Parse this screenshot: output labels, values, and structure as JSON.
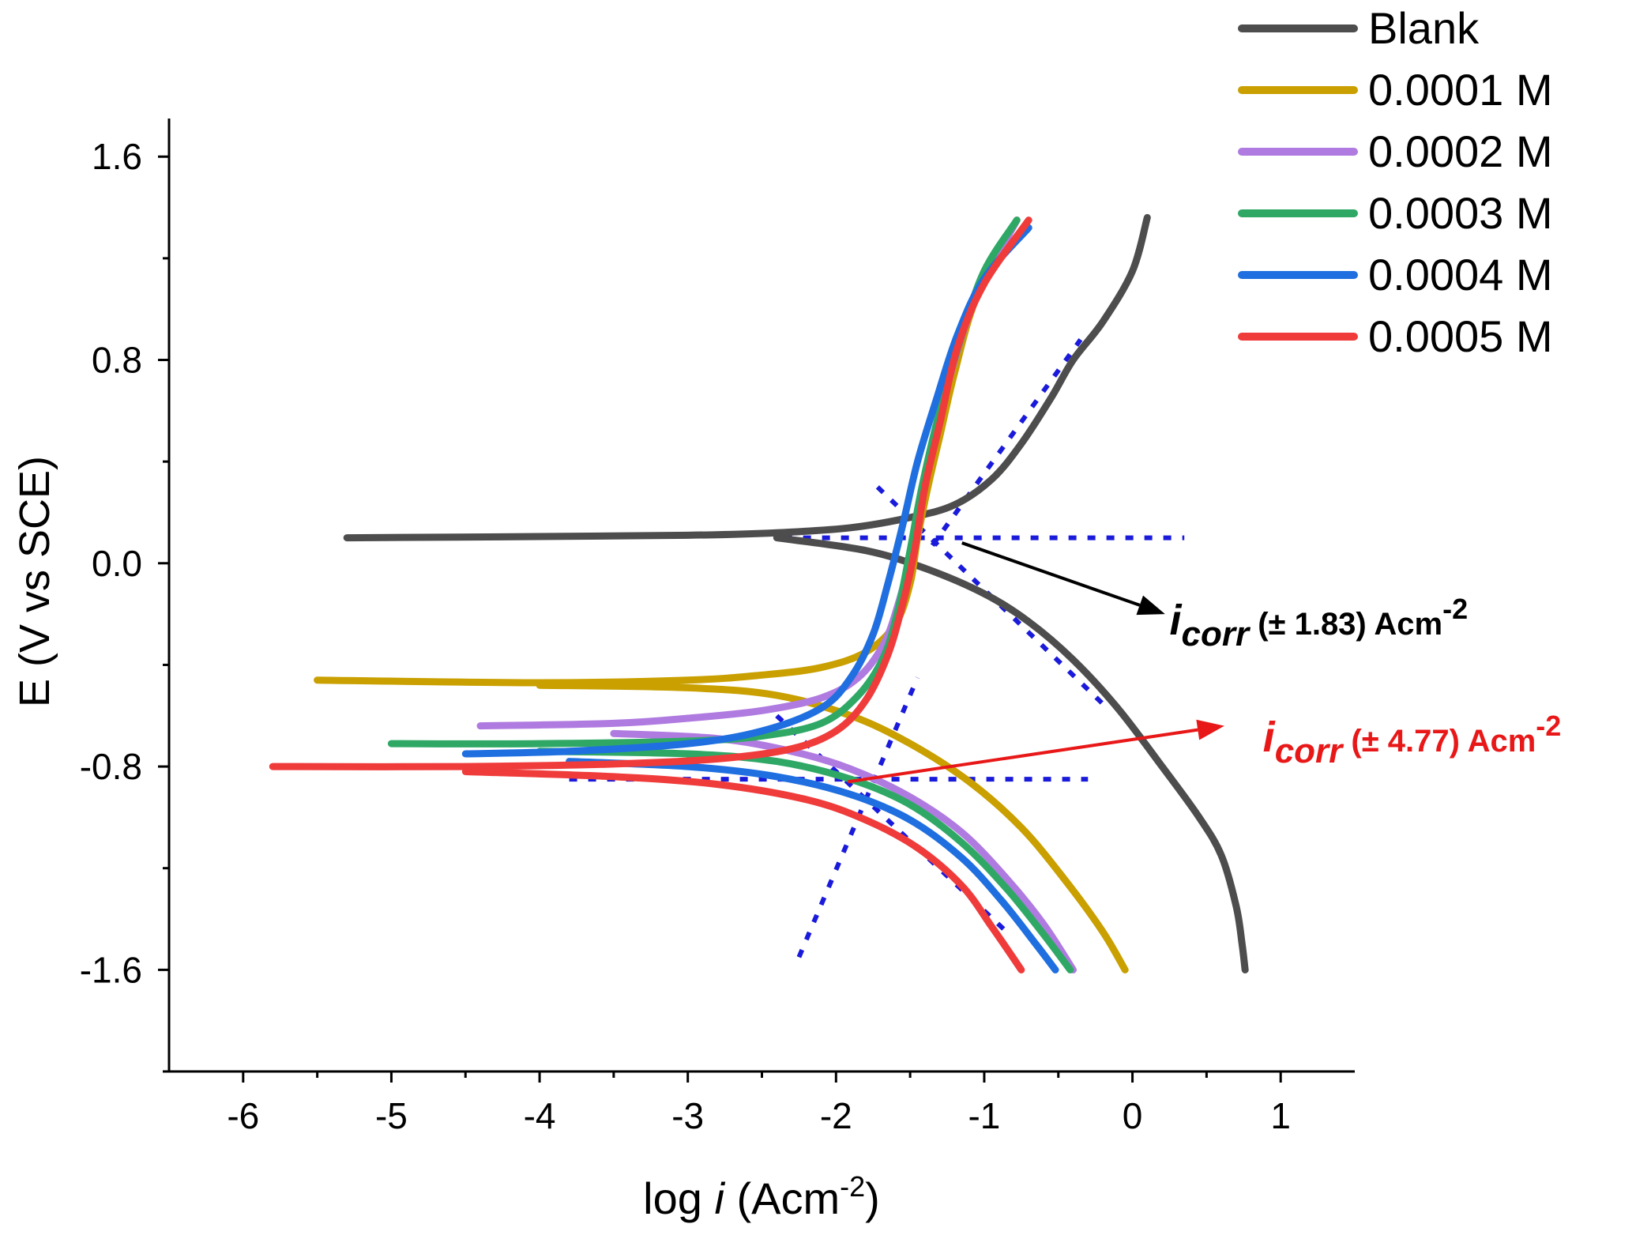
{
  "chart_data": {
    "type": "line",
    "title": "",
    "xlabel": {
      "prefix": "log ",
      "italic": "i",
      "unit": " (Acm",
      "sup": "-2",
      "close": ")"
    },
    "ylabel": "E (V vs SCE)",
    "xlim": [
      -6.5,
      1.5
    ],
    "ylim": [
      -2.0,
      1.75
    ],
    "xticks": [
      -6,
      -5,
      -4,
      -3,
      -2,
      -1,
      0,
      1
    ],
    "xtick_labels": [
      "-6",
      "-5",
      "-4",
      "-3",
      "-2",
      "-1",
      "0",
      "1"
    ],
    "yticks": [
      -1.6,
      -0.8,
      0.0,
      0.8,
      1.6
    ],
    "ytick_labels": [
      "-1.6",
      "-0.8",
      "0.0",
      "0.8",
      "1.6"
    ],
    "legend_position": "top-right",
    "series": [
      {
        "name": "Blank",
        "color": "#4d4d4d",
        "anodic": [
          [
            -5.3,
            0.1
          ],
          [
            -4.0,
            0.105
          ],
          [
            -3.0,
            0.11
          ],
          [
            -2.4,
            0.12
          ],
          [
            -1.9,
            0.14
          ],
          [
            -1.5,
            0.18
          ],
          [
            -1.2,
            0.23
          ],
          [
            -0.95,
            0.33
          ],
          [
            -0.75,
            0.47
          ],
          [
            -0.55,
            0.65
          ],
          [
            -0.4,
            0.8
          ],
          [
            -0.2,
            0.95
          ],
          [
            0.0,
            1.15
          ],
          [
            0.1,
            1.36
          ]
        ],
        "cathodic": [
          [
            -2.4,
            0.1
          ],
          [
            -1.8,
            0.05
          ],
          [
            -1.4,
            -0.02
          ],
          [
            -1.0,
            -0.12
          ],
          [
            -0.7,
            -0.23
          ],
          [
            -0.4,
            -0.38
          ],
          [
            -0.1,
            -0.57
          ],
          [
            0.2,
            -0.8
          ],
          [
            0.45,
            -1.0
          ],
          [
            0.6,
            -1.15
          ],
          [
            0.7,
            -1.35
          ],
          [
            0.74,
            -1.5
          ],
          [
            0.76,
            -1.6
          ]
        ]
      },
      {
        "name": "0.0001 M",
        "color": "#c9a000",
        "anodic": [
          [
            -5.5,
            -0.46
          ],
          [
            -4.0,
            -0.47
          ],
          [
            -3.0,
            -0.46
          ],
          [
            -2.5,
            -0.44
          ],
          [
            -2.1,
            -0.41
          ],
          [
            -1.8,
            -0.35
          ],
          [
            -1.6,
            -0.24
          ],
          [
            -1.5,
            -0.08
          ],
          [
            -1.45,
            0.1
          ],
          [
            -1.38,
            0.3
          ],
          [
            -1.3,
            0.5
          ],
          [
            -1.2,
            0.75
          ],
          [
            -1.05,
            1.05
          ],
          [
            -0.78,
            1.35
          ]
        ],
        "cathodic": [
          [
            -4.0,
            -0.48
          ],
          [
            -3.0,
            -0.49
          ],
          [
            -2.4,
            -0.52
          ],
          [
            -1.9,
            -0.6
          ],
          [
            -1.5,
            -0.71
          ],
          [
            -1.1,
            -0.86
          ],
          [
            -0.75,
            -1.04
          ],
          [
            -0.45,
            -1.25
          ],
          [
            -0.2,
            -1.45
          ],
          [
            -0.05,
            -1.6
          ]
        ]
      },
      {
        "name": "0.0002 M",
        "color": "#b07be0",
        "anodic": [
          [
            -4.4,
            -0.64
          ],
          [
            -3.5,
            -0.63
          ],
          [
            -3.0,
            -0.61
          ],
          [
            -2.5,
            -0.58
          ],
          [
            -2.1,
            -0.53
          ],
          [
            -1.85,
            -0.45
          ],
          [
            -1.68,
            -0.32
          ],
          [
            -1.58,
            -0.16
          ],
          [
            -1.5,
            0.02
          ],
          [
            -1.42,
            0.25
          ],
          [
            -1.33,
            0.5
          ],
          [
            -1.2,
            0.8
          ],
          [
            -1.05,
            1.05
          ],
          [
            -0.78,
            1.35
          ]
        ],
        "cathodic": [
          [
            -3.5,
            -0.67
          ],
          [
            -2.8,
            -0.69
          ],
          [
            -2.3,
            -0.74
          ],
          [
            -1.9,
            -0.81
          ],
          [
            -1.5,
            -0.92
          ],
          [
            -1.15,
            -1.06
          ],
          [
            -0.85,
            -1.24
          ],
          [
            -0.6,
            -1.42
          ],
          [
            -0.4,
            -1.6
          ]
        ]
      },
      {
        "name": "0.0003 M",
        "color": "#2fa866",
        "anodic": [
          [
            -5.0,
            -0.71
          ],
          [
            -4.0,
            -0.71
          ],
          [
            -3.0,
            -0.7
          ],
          [
            -2.5,
            -0.68
          ],
          [
            -2.1,
            -0.63
          ],
          [
            -1.85,
            -0.52
          ],
          [
            -1.68,
            -0.37
          ],
          [
            -1.58,
            -0.18
          ],
          [
            -1.5,
            0.05
          ],
          [
            -1.42,
            0.3
          ],
          [
            -1.3,
            0.6
          ],
          [
            -1.15,
            0.9
          ],
          [
            -1.0,
            1.15
          ],
          [
            -0.78,
            1.35
          ]
        ],
        "cathodic": [
          [
            -4.0,
            -0.74
          ],
          [
            -3.0,
            -0.75
          ],
          [
            -2.4,
            -0.78
          ],
          [
            -1.9,
            -0.85
          ],
          [
            -1.5,
            -0.95
          ],
          [
            -1.15,
            -1.1
          ],
          [
            -0.85,
            -1.28
          ],
          [
            -0.6,
            -1.46
          ],
          [
            -0.42,
            -1.6
          ]
        ]
      },
      {
        "name": "0.0004 M",
        "color": "#1f6fe0",
        "anodic": [
          [
            -4.5,
            -0.75
          ],
          [
            -3.8,
            -0.74
          ],
          [
            -3.0,
            -0.71
          ],
          [
            -2.5,
            -0.66
          ],
          [
            -2.1,
            -0.57
          ],
          [
            -1.9,
            -0.45
          ],
          [
            -1.75,
            -0.28
          ],
          [
            -1.65,
            -0.08
          ],
          [
            -1.55,
            0.15
          ],
          [
            -1.45,
            0.4
          ],
          [
            -1.32,
            0.65
          ],
          [
            -1.18,
            0.9
          ],
          [
            -1.0,
            1.12
          ],
          [
            -0.7,
            1.32
          ]
        ],
        "cathodic": [
          [
            -3.8,
            -0.78
          ],
          [
            -3.0,
            -0.8
          ],
          [
            -2.4,
            -0.84
          ],
          [
            -1.9,
            -0.91
          ],
          [
            -1.5,
            -1.01
          ],
          [
            -1.15,
            -1.16
          ],
          [
            -0.88,
            -1.33
          ],
          [
            -0.65,
            -1.5
          ],
          [
            -0.52,
            -1.6
          ]
        ]
      },
      {
        "name": "0.0005 M",
        "color": "#f03b3b",
        "anodic": [
          [
            -5.8,
            -0.8
          ],
          [
            -4.5,
            -0.8
          ],
          [
            -3.5,
            -0.79
          ],
          [
            -2.8,
            -0.77
          ],
          [
            -2.3,
            -0.73
          ],
          [
            -2.0,
            -0.66
          ],
          [
            -1.8,
            -0.54
          ],
          [
            -1.65,
            -0.36
          ],
          [
            -1.55,
            -0.16
          ],
          [
            -1.47,
            0.05
          ],
          [
            -1.4,
            0.3
          ],
          [
            -1.3,
            0.55
          ],
          [
            -1.18,
            0.85
          ],
          [
            -1.0,
            1.1
          ],
          [
            -0.7,
            1.35
          ]
        ],
        "cathodic": [
          [
            -4.5,
            -0.82
          ],
          [
            -3.5,
            -0.84
          ],
          [
            -2.8,
            -0.87
          ],
          [
            -2.2,
            -0.93
          ],
          [
            -1.8,
            -1.01
          ],
          [
            -1.45,
            -1.12
          ],
          [
            -1.15,
            -1.27
          ],
          [
            -0.95,
            -1.43
          ],
          [
            -0.75,
            -1.6
          ]
        ]
      }
    ],
    "tafel_lines": {
      "color": "#1a1adb",
      "lines": [
        [
          [
            -2.35,
            0.1
          ],
          [
            0.35,
            0.1
          ]
        ],
        [
          [
            -1.72,
            0.3
          ],
          [
            -0.17,
            -0.57
          ]
        ],
        [
          [
            -1.35,
            0.07
          ],
          [
            -0.35,
            0.88
          ]
        ],
        [
          [
            -3.8,
            -0.85
          ],
          [
            -0.3,
            -0.85
          ]
        ],
        [
          [
            -2.25,
            -1.55
          ],
          [
            -1.45,
            -0.45
          ]
        ],
        [
          [
            -2.4,
            -0.6
          ],
          [
            -0.85,
            -1.45
          ]
        ]
      ]
    },
    "annotations": [
      {
        "name": "Blank",
        "color": "#000000",
        "arrow_from": [
          -1.15,
          0.08
        ],
        "arrow_to": [
          0.22,
          -0.2
        ],
        "label_at": [
          0.25,
          -0.28
        ],
        "italic": "i",
        "subscript": "corr",
        "text": " (± 1.83) Acm",
        "sup": "-2"
      },
      {
        "name": "0.0005 M",
        "color": "#e81818",
        "arrow_from": [
          -1.92,
          -0.86
        ],
        "arrow_to": [
          0.62,
          -0.64
        ],
        "label_at": [
          0.88,
          -0.74
        ],
        "italic": "i",
        "subscript": "corr",
        "text": " (± 4.77) Acm",
        "sup": "-2"
      }
    ]
  }
}
